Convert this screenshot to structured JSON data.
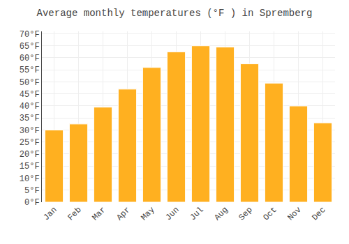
{
  "chart_data": {
    "type": "bar",
    "title": "Average monthly temperatures (°F ) in Spremberg",
    "categories": [
      "Jan",
      "Feb",
      "Mar",
      "Apr",
      "May",
      "Jun",
      "Jul",
      "Aug",
      "Sep",
      "Oct",
      "Nov",
      "Dec"
    ],
    "values": [
      30,
      32.5,
      39.5,
      47,
      56,
      62.5,
      65,
      64.5,
      57.5,
      49.5,
      40,
      33
    ],
    "color": "#FFB020",
    "ylim": [
      0,
      71
    ],
    "yticks": [
      {
        "value": 0,
        "label": "0°F"
      },
      {
        "value": 5,
        "label": "5°F"
      },
      {
        "value": 10,
        "label": "10°F"
      },
      {
        "value": 15,
        "label": "15°F"
      },
      {
        "value": 20,
        "label": "20°F"
      },
      {
        "value": 25,
        "label": "25°F"
      },
      {
        "value": 30,
        "label": "30°F"
      },
      {
        "value": 35,
        "label": "35°F"
      },
      {
        "value": 40,
        "label": "40°F"
      },
      {
        "value": 45,
        "label": "45°F"
      },
      {
        "value": 50,
        "label": "50°F"
      },
      {
        "value": 55,
        "label": "55°F"
      },
      {
        "value": 60,
        "label": "60°F"
      },
      {
        "value": 65,
        "label": "65°F"
      },
      {
        "value": 70,
        "label": "70°F"
      }
    ],
    "grid": true
  }
}
